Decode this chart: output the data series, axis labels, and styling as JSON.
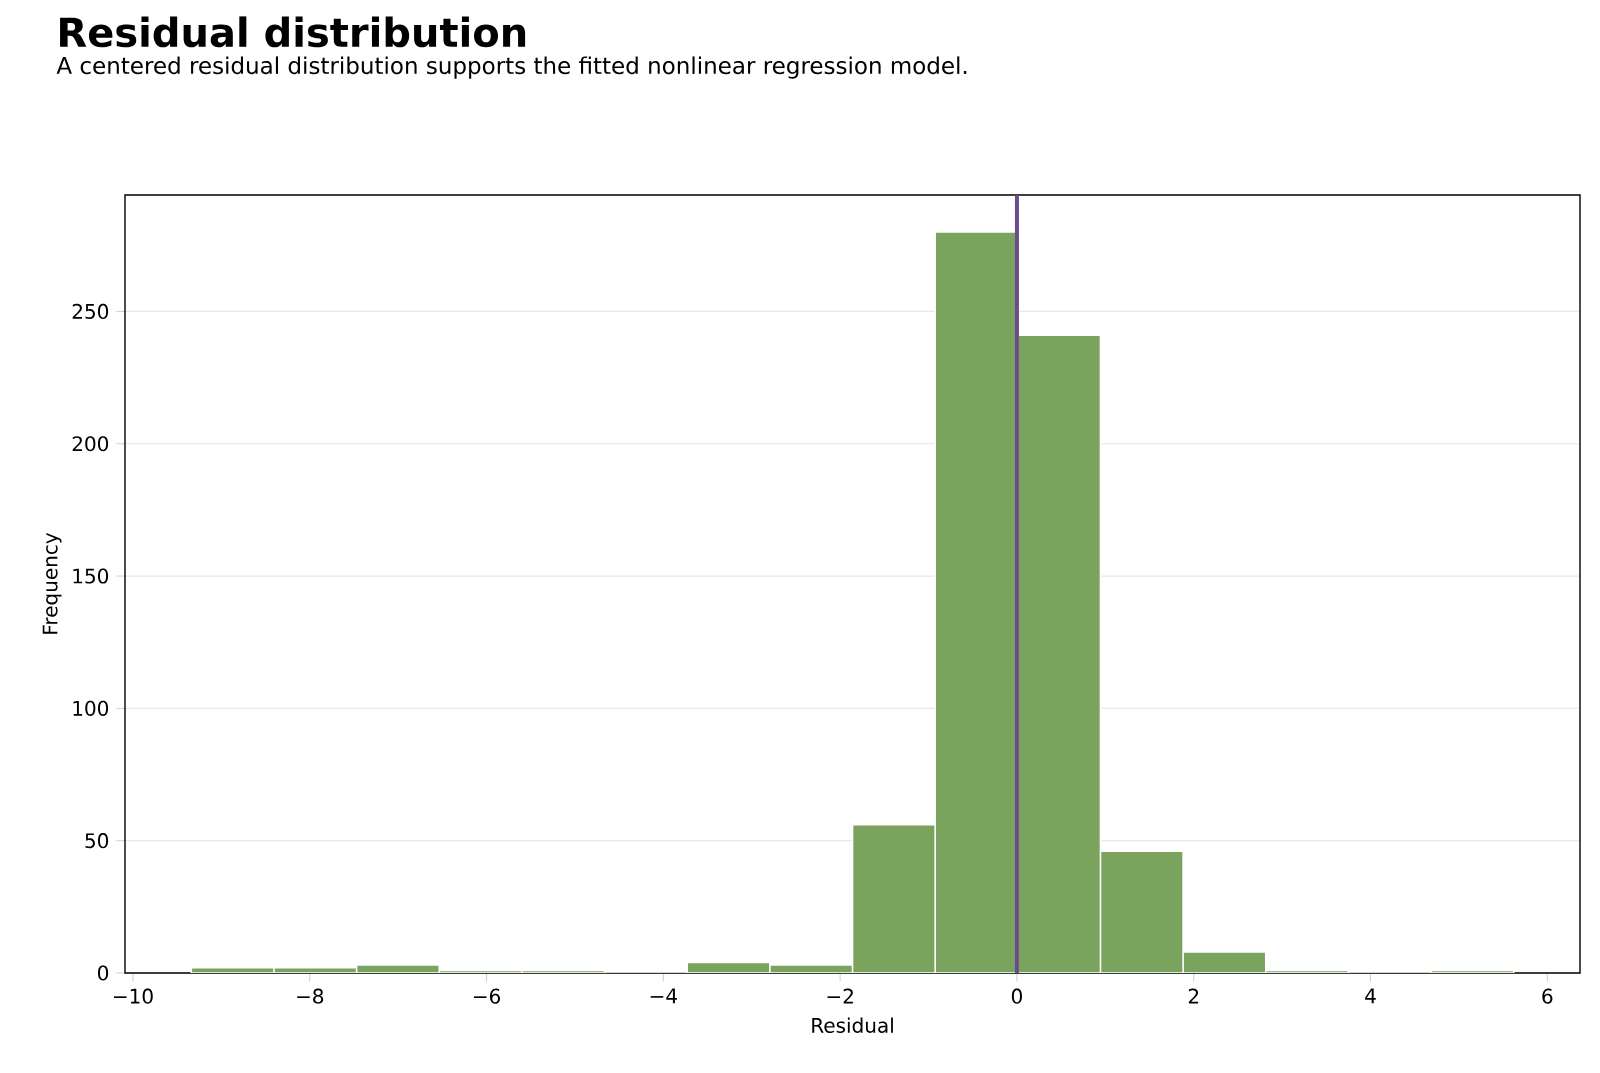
{
  "chart_data": {
    "type": "histogram",
    "title": "Residual distribution",
    "subtitle": "A centered residual distribution supports the fitted nonlinear regression model.",
    "xlabel": "Residual",
    "ylabel": "Frequency",
    "bins": [
      -9.34,
      -8.405,
      -7.47,
      -6.535,
      -5.6,
      -4.665,
      -3.73,
      -2.795,
      -1.86,
      -0.925,
      0.01,
      0.945,
      1.88,
      2.815,
      3.75,
      4.685,
      5.62
    ],
    "values": [
      2,
      2,
      3,
      1,
      1,
      0,
      4,
      3,
      56,
      280,
      241,
      46,
      8,
      1,
      0,
      1
    ],
    "color": "#7aa35e",
    "xlim": [
      -10.09,
      6.37
    ],
    "ylim": [
      0,
      294
    ],
    "xticks": [
      {
        "value": -10,
        "label": "−10"
      },
      {
        "value": -8,
        "label": "−8"
      },
      {
        "value": -6,
        "label": "−6"
      },
      {
        "value": -4,
        "label": "−4"
      },
      {
        "value": -2,
        "label": "−2"
      },
      0,
      2,
      4,
      6
    ],
    "yticks": [
      0,
      50,
      100,
      150,
      200,
      250
    ],
    "grid": "y",
    "ref_lines": [
      {
        "axis": "x",
        "value": 0,
        "color": "#6b4c8a"
      }
    ]
  }
}
